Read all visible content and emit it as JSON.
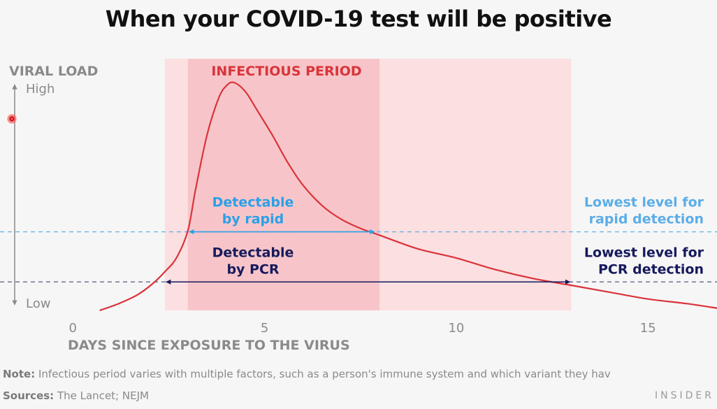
{
  "title": "When your COVID-19 test will be positive",
  "chart_data": {
    "type": "line",
    "title": "When your COVID-19 test will be positive",
    "xlabel": "DAYS SINCE EXPOSURE TO THE VIRUS",
    "ylabel": "VIRAL LOAD",
    "xlim": [
      -1.9,
      16.8
    ],
    "ylim": [
      0,
      1
    ],
    "x_ticks": [
      0,
      5,
      10,
      15
    ],
    "y_ticks": [
      {
        "value": 0,
        "label": "Low"
      },
      {
        "value": 1,
        "label": "High"
      }
    ],
    "grid": false,
    "series": [
      {
        "x": [
          0.7,
          1.2,
          1.7,
          2.1,
          2.4,
          2.7,
          3.0,
          3.2,
          3.5,
          3.8,
          4.0,
          4.2,
          4.5,
          4.8,
          5.2,
          5.6,
          6.0,
          6.5,
          7.0,
          7.5,
          8.0,
          9.0,
          10.0,
          11.0,
          12.0,
          13.0,
          14.0,
          15.0,
          16.0,
          16.8
        ],
        "y": [
          0.0,
          0.03,
          0.07,
          0.12,
          0.17,
          0.23,
          0.35,
          0.53,
          0.77,
          0.93,
          0.985,
          1.0,
          0.96,
          0.88,
          0.77,
          0.65,
          0.55,
          0.46,
          0.4,
          0.36,
          0.33,
          0.27,
          0.23,
          0.18,
          0.14,
          0.11,
          0.08,
          0.05,
          0.03,
          0.01
        ]
      }
    ],
    "shaded_regions": [
      {
        "from": 2.4,
        "to": 13.0,
        "color": "#fbdfe1"
      },
      {
        "from": 3.0,
        "to": 8.0,
        "color": "#f7c5c9",
        "label": "INFECTIOUS PERIOD"
      }
    ],
    "thresholds": [
      {
        "y": 0.345,
        "label": [
          "Lowest level for",
          "rapid detection"
        ],
        "color": "#5aaee8"
      },
      {
        "y": 0.125,
        "label": [
          "Lowest level for",
          "PCR detection"
        ],
        "color": "#161a5c"
      }
    ],
    "ranges": [
      {
        "from": 3.0,
        "to": 7.9,
        "y": 0.345,
        "label": [
          "Detectable",
          "by rapid"
        ],
        "color": "#2aa0e8"
      },
      {
        "from": 2.4,
        "to": 13.0,
        "y": 0.125,
        "label": [
          "Detectable",
          "by PCR"
        ],
        "color": "#161a5c"
      }
    ],
    "colors": {
      "curve": "#d9343a",
      "infectious_label": "#d9343a",
      "axis": "#8a8a8a",
      "tick_label": "#8a8a8a"
    }
  },
  "footer": {
    "note_label": "Note:",
    "note_text": "Infectious period varies with multiple factors, such as a person's immune system and which variant they hav",
    "sources_label": "Sources:",
    "sources_text": "The Lancet; NEJM",
    "brand": "INSIDER"
  }
}
